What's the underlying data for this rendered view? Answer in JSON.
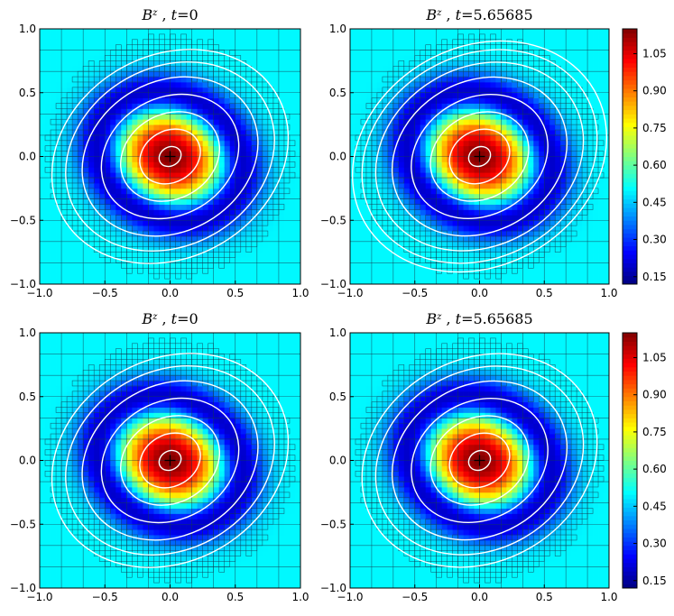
{
  "chart_data": [
    {
      "type": "heatmap",
      "title": {
        "symbol": "B",
        "superscript": "z",
        "sep": ",",
        "tvar": "t",
        "eq": "=",
        "time": "0"
      },
      "xlim": [
        -1.0,
        1.0
      ],
      "ylim": [
        -1.0,
        1.0
      ],
      "xticks": [
        "−1.0",
        "−0.5",
        "0.0",
        "0.5",
        "1.0"
      ],
      "yticks": [
        "−1.0",
        "−0.5",
        "0.0",
        "0.5",
        "1.0"
      ],
      "field": {
        "peak": 1.15,
        "min": 0.12,
        "background": 0.5,
        "rotation_deg": -30,
        "sx": 0.72,
        "sy": 0.6
      },
      "contour_levels": [
        0.08,
        0.22,
        0.36,
        0.5,
        0.64,
        0.76,
        0.86
      ],
      "colorbar": false
    },
    {
      "type": "heatmap",
      "title": {
        "symbol": "B",
        "superscript": "z",
        "sep": ",",
        "tvar": "t",
        "eq": "=",
        "time": "5.65685"
      },
      "xlim": [
        -1.0,
        1.0
      ],
      "ylim": [
        -1.0,
        1.0
      ],
      "xticks": [
        "−1.0",
        "−0.5",
        "0.0",
        "0.5",
        "1.0"
      ],
      "yticks": [
        "−1.0",
        "−0.5",
        "0.0",
        "0.5",
        "1.0"
      ],
      "field": {
        "peak": 1.15,
        "min": 0.12,
        "background": 0.5,
        "rotation_deg": -30,
        "sx": 0.72,
        "sy": 0.6
      },
      "contour_levels": [
        0.08,
        0.22,
        0.36,
        0.5,
        0.64,
        0.76,
        0.86,
        0.93
      ],
      "colorbar": true
    },
    {
      "type": "heatmap",
      "title": {
        "symbol": "B",
        "superscript": "z",
        "sep": ",",
        "tvar": "t",
        "eq": "=",
        "time": "0"
      },
      "xlim": [
        -1.0,
        1.0
      ],
      "ylim": [
        -1.0,
        1.0
      ],
      "xticks": [
        "−1.0",
        "−0.5",
        "0.0",
        "0.5",
        "1.0"
      ],
      "yticks": [
        "−1.0",
        "−0.5",
        "0.0",
        "0.5",
        "1.0"
      ],
      "field": {
        "peak": 1.15,
        "min": 0.12,
        "background": 0.5,
        "rotation_deg": -30,
        "sx": 0.72,
        "sy": 0.6
      },
      "contour_levels": [
        0.08,
        0.22,
        0.36,
        0.5,
        0.64,
        0.76,
        0.86
      ],
      "colorbar": false
    },
    {
      "type": "heatmap",
      "title": {
        "symbol": "B",
        "superscript": "z",
        "sep": ",",
        "tvar": "t",
        "eq": "=",
        "time": "5.65685"
      },
      "xlim": [
        -1.0,
        1.0
      ],
      "ylim": [
        -1.0,
        1.0
      ],
      "xticks": [
        "−1.0",
        "−0.5",
        "0.0",
        "0.5",
        "1.0"
      ],
      "yticks": [
        "−1.0",
        "−0.5",
        "0.0",
        "0.5",
        "1.0"
      ],
      "field": {
        "peak": 1.15,
        "min": 0.12,
        "background": 0.5,
        "rotation_deg": -30,
        "sx": 0.72,
        "sy": 0.6
      },
      "contour_levels": [
        0.08,
        0.22,
        0.36,
        0.5,
        0.64,
        0.76,
        0.86
      ],
      "colorbar": true
    }
  ],
  "colorbar": {
    "ticks": [
      "1.05",
      "0.90",
      "0.75",
      "0.60",
      "0.45",
      "0.30",
      "0.15"
    ],
    "tick_values": [
      1.05,
      0.9,
      0.75,
      0.6,
      0.45,
      0.3,
      0.15
    ],
    "vmin": 0.12,
    "vmax": 1.15
  },
  "colors": {
    "mesh": "#143c50",
    "contour": "#ffffff"
  }
}
